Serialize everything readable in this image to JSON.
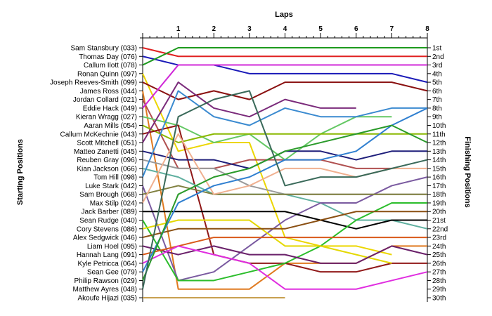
{
  "chart_data": {
    "type": "line",
    "title": "",
    "xlabel": "Laps",
    "ylabel_left": "Starting Positions",
    "ylabel_right": "Finishing Positions",
    "x": [
      0,
      1,
      2,
      3,
      4,
      5,
      6,
      7,
      8
    ],
    "x_tick_labels": [
      "1",
      "2",
      "3",
      "4",
      "5",
      "6",
      "7",
      "8"
    ],
    "ylim": [
      1,
      30
    ],
    "grid": false,
    "starting_order": [
      "Sam Stansbury (033)",
      "Thomas Day (076)",
      "Callum Ilott (078)",
      "Ronan Quinn (097)",
      "Joseph Reeves-Smith (099)",
      "James Ross (044)",
      "Jordan Collard (021)",
      "Eddie Hack (049)",
      "Kieran Wragg (027)",
      "Aaran Mills (054)",
      "Callum McKechnie (043)",
      "Scott Mitchell (051)",
      "Matteo Zanetti (045)",
      "Reuben Gray (096)",
      "Kian Jackson (066)",
      "Tom Hill (098)",
      "Luke Stark (042)",
      "Sam Brough (068)",
      "Max Stilp (024)",
      "Jack Barber (089)",
      "Sean Rudge (040)",
      "Cory Stevens (086)",
      "Alex Sedgwick (046)",
      "Liam Hoel (095)",
      "Hannah Lang (091)",
      "Kyle Petricca (064)",
      "Sean Gee (079)",
      "Philip Rawson (029)",
      "Matthew Ayres (048)",
      "Akoufe Hijazi (035)"
    ],
    "finishing_labels": [
      "1st",
      "2nd",
      "3rd",
      "4th",
      "5th",
      "6th",
      "7th",
      "8th",
      "9th",
      "10th",
      "11th",
      "12th",
      "13th",
      "14th",
      "15th",
      "16th",
      "17th",
      "18th",
      "19th",
      "20th",
      "21st",
      "22nd",
      "23rd",
      "24th",
      "25th",
      "26th",
      "27th",
      "28th",
      "29th",
      "30th"
    ],
    "series": [
      {
        "name": "Sam Stansbury (033)",
        "color": "#e02020",
        "values": [
          1,
          2,
          2,
          2,
          2,
          2,
          2,
          2,
          2
        ]
      },
      {
        "name": "Thomas Day (076)",
        "color": "#1a1ab8",
        "values": [
          2,
          3,
          3,
          4,
          4,
          4,
          4,
          4,
          5
        ]
      },
      {
        "name": "Callum Ilott (078)",
        "color": "#1e9a1e",
        "values": [
          3,
          1,
          1,
          1,
          1,
          1,
          1,
          1,
          1
        ]
      },
      {
        "name": "Ronan Quinn (097)",
        "color": "#ecd600",
        "values": [
          4,
          13,
          12,
          12,
          23,
          24,
          24,
          25,
          null
        ]
      },
      {
        "name": "Joseph Reeves-Smith (099)",
        "color": "#8a1010",
        "values": [
          5,
          7,
          6,
          7,
          5,
          5,
          5,
          5,
          6
        ]
      },
      {
        "name": "James Ross (044)",
        "color": "#e07a20",
        "values": [
          6,
          29,
          29,
          29,
          26,
          26,
          26,
          24,
          24
        ]
      },
      {
        "name": "Jordan Collard (021)",
        "color": "#b05050",
        "values": [
          7,
          15,
          15,
          14,
          14,
          14,
          15,
          15,
          null
        ]
      },
      {
        "name": "Eddie Hack (049)",
        "color": "#d028d8",
        "values": [
          8,
          3,
          3,
          3,
          3,
          3,
          3,
          3,
          3
        ]
      },
      {
        "name": "Kieran Wragg (027)",
        "color": "#64c864",
        "values": [
          9,
          10,
          12,
          11,
          14,
          11,
          9,
          9,
          null
        ]
      },
      {
        "name": "Aaran Mills (054)",
        "color": "#8ab800",
        "values": [
          10,
          12,
          11,
          11,
          11,
          11,
          11,
          11,
          11
        ]
      },
      {
        "name": "Callum McKechnie (043)",
        "color": "#901818",
        "values": [
          11,
          10,
          25,
          26,
          26,
          27,
          27,
          26,
          26
        ]
      },
      {
        "name": "Scott Mitchell (051)",
        "color": "#7a2a7a",
        "values": [
          12,
          5,
          8,
          9,
          7,
          8,
          8,
          null,
          null
        ]
      },
      {
        "name": "Matteo Zanetti (045)",
        "color": "#1e1e7a",
        "values": [
          13,
          14,
          14,
          15,
          13,
          13,
          14,
          13,
          13
        ]
      },
      {
        "name": "Reuben Gray (096)",
        "color": "#9a9a9a",
        "values": [
          14,
          15,
          15,
          17,
          18,
          18,
          18,
          18,
          18
        ]
      },
      {
        "name": "Kian Jackson (066)",
        "color": "#60b0a0",
        "values": [
          15,
          16,
          18,
          18,
          18,
          19,
          21,
          21,
          22
        ]
      },
      {
        "name": "Tom Hill (098)",
        "color": "#3a8ad0",
        "values": [
          16,
          6,
          9,
          10,
          8,
          9,
          9,
          8,
          8
        ]
      },
      {
        "name": "Luke Stark (042)",
        "color": "#7a5aa0",
        "values": [
          17,
          28,
          27,
          24,
          21,
          19,
          19,
          17,
          16
        ]
      },
      {
        "name": "Sam Brough (068)",
        "color": "#808040",
        "values": [
          18,
          17,
          18,
          18,
          18,
          18,
          18,
          18,
          18
        ]
      },
      {
        "name": "Max Stilp (024)",
        "color": "#f0b090",
        "values": [
          19,
          11,
          18,
          17,
          15,
          15,
          16,
          15,
          15
        ]
      },
      {
        "name": "Jack Barber (089)",
        "color": "#000000",
        "values": [
          20,
          20,
          20,
          20,
          20,
          21,
          22,
          21,
          21
        ]
      },
      {
        "name": "Sean Rudge (040)",
        "color": "#2bbd2b",
        "values": [
          21,
          28,
          28,
          27,
          26,
          24,
          21,
          19,
          19
        ]
      },
      {
        "name": "Cory Stevens (086)",
        "color": "#e4d800",
        "values": [
          22,
          21,
          21,
          21,
          24,
          24,
          25,
          26,
          null
        ]
      },
      {
        "name": "Alex Sedgwick (046)",
        "color": "#8a4f12",
        "values": [
          23,
          22,
          22,
          22,
          22,
          21,
          20,
          20,
          20
        ]
      },
      {
        "name": "Liam Hoel (095)",
        "color": "#6a206a",
        "values": [
          24,
          25,
          24,
          25,
          25,
          26,
          26,
          24,
          25
        ]
      },
      {
        "name": "Hannah Lang (091)",
        "color": "#d95a1a",
        "values": [
          25,
          24,
          23,
          23,
          23,
          23,
          23,
          23,
          23
        ]
      },
      {
        "name": "Kyle Petricca (064)",
        "color": "#e02ee0",
        "values": [
          26,
          24,
          25,
          26,
          29,
          29,
          29,
          28,
          27
        ]
      },
      {
        "name": "Sean Gee (079)",
        "color": "#2f7fd0",
        "values": [
          27,
          19,
          17,
          16,
          14,
          14,
          13,
          10,
          8
        ]
      },
      {
        "name": "Philip Rawson (029)",
        "color": "#2a9a2a",
        "values": [
          28,
          18,
          16,
          15,
          13,
          12,
          11,
          10,
          12
        ]
      },
      {
        "name": "Matthew Ayres (048)",
        "color": "#3a6a5a",
        "values": [
          29,
          9,
          7,
          6,
          17,
          16,
          16,
          15,
          14
        ]
      },
      {
        "name": "Akoufe Hijazi (035)",
        "color": "#c8a050",
        "values": [
          30,
          30,
          30,
          30,
          30,
          null,
          null,
          null,
          null
        ]
      }
    ]
  }
}
